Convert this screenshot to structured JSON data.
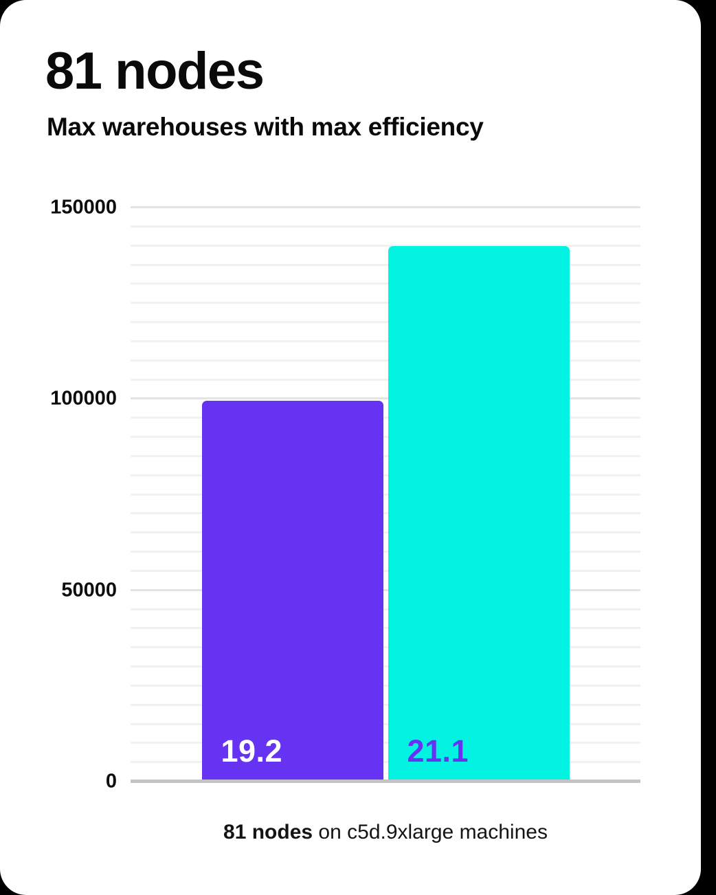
{
  "header": {
    "title": "81 nodes",
    "subtitle": "Max warehouses with max efficiency"
  },
  "caption": {
    "bold": "81 nodes",
    "rest": " on c5d.9xlarge machines"
  },
  "chart_data": {
    "type": "bar",
    "categories": [
      "19.2",
      "21.1"
    ],
    "values": [
      99500,
      140000
    ],
    "bar_labels": [
      "19.2",
      "21.1"
    ],
    "bar_colors": [
      "#6633f2",
      "#03f3e3"
    ],
    "bar_label_colors": [
      "#ffffff",
      "#6633f2"
    ],
    "title": "81 nodes",
    "subtitle": "Max warehouses with max efficiency",
    "xlabel": "",
    "ylabel": "",
    "ylim": [
      0,
      150000
    ],
    "yticks": [
      0,
      50000,
      100000,
      150000
    ],
    "minor_gridline_step": 5000,
    "grid": "horizontal",
    "legend": false,
    "caption": "81 nodes on c5d.9xlarge machines"
  },
  "colors": {
    "background": "#000000",
    "card": "#ffffff",
    "text": "#0a0a0a",
    "grid_minor": "#f1f1f1",
    "grid_major": "#e4e4e4",
    "axis_baseline": "#c3c4c7",
    "accent_purple": "#6633f2",
    "accent_cyan": "#03f3e3"
  }
}
